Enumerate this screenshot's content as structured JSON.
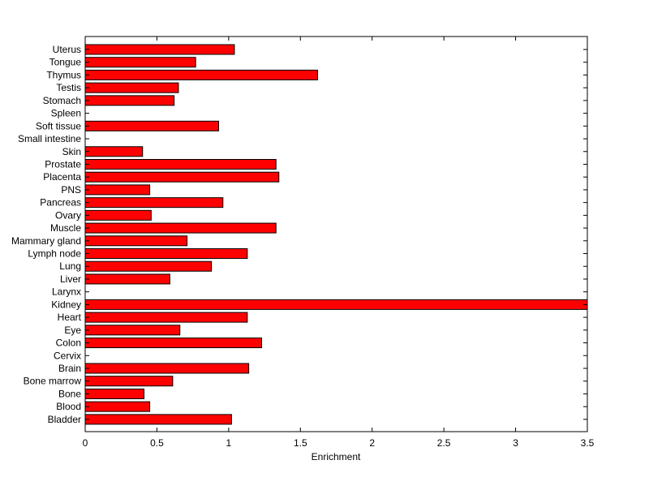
{
  "chart_data": {
    "type": "bar",
    "orientation": "horizontal",
    "title": "",
    "xlabel": "Enrichment",
    "ylabel": "",
    "xlim": [
      0,
      3.5
    ],
    "xticks": [
      "0",
      "0.5",
      "1",
      "1.5",
      "2",
      "2.5",
      "3",
      "3.5"
    ],
    "grid": false,
    "bar_color": "#ff0000",
    "categories": [
      "Uterus",
      "Tongue",
      "Thymus",
      "Testis",
      "Stomach",
      "Spleen",
      "Soft tissue",
      "Small intestine",
      "Skin",
      "Prostate",
      "Placenta",
      "PNS",
      "Pancreas",
      "Ovary",
      "Muscle",
      "Mammary gland",
      "Lymph node",
      "Lung",
      "Liver",
      "Larynx",
      "Kidney",
      "Heart",
      "Eye",
      "Colon",
      "Cervix",
      "Brain",
      "Bone marrow",
      "Bone",
      "Blood",
      "Bladder"
    ],
    "values": [
      1.04,
      0.77,
      1.62,
      0.65,
      0.62,
      0,
      0.93,
      0,
      0.4,
      1.33,
      1.35,
      0.45,
      0.96,
      0.46,
      1.33,
      0.71,
      1.13,
      0.88,
      0.59,
      0,
      3.5,
      1.13,
      0.66,
      1.23,
      0,
      1.14,
      0.61,
      0.41,
      0.45,
      1.02
    ]
  }
}
